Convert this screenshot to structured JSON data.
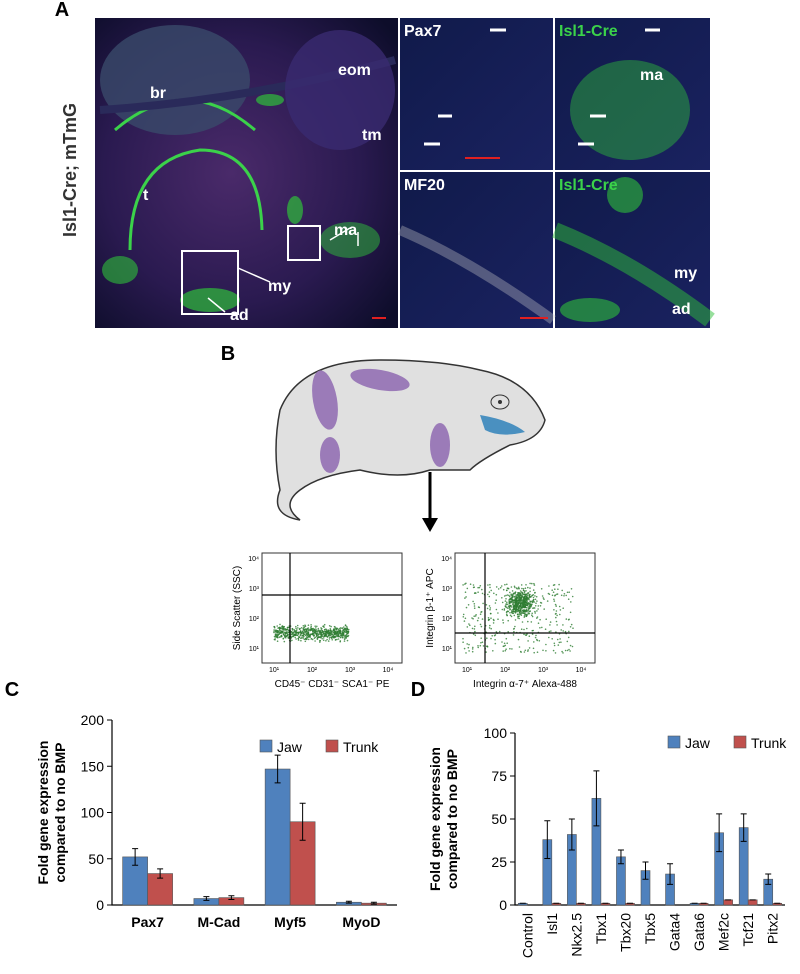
{
  "panel_labels": [
    "A",
    "B",
    "C",
    "D"
  ],
  "panel_a": {
    "side_label": "Isl1-Cre; mTmG",
    "main_labels": [
      "br",
      "eom",
      "tm",
      "t",
      "ma",
      "my",
      "ad"
    ],
    "insets": [
      {
        "label": "Pax7"
      },
      {
        "label": "Isl1-Cre",
        "labels": [
          "ma"
        ]
      },
      {
        "label": "MF20"
      },
      {
        "label": "Isl1-Cre",
        "labels": [
          "my",
          "ad"
        ]
      }
    ]
  },
  "panel_b": {
    "flow_plots": [
      {
        "ylabel": "Side Scatter (SSC)",
        "xlabel": "CD45⁻ CD31⁻ SCA1⁻ PE",
        "xticks": [
          "10¹",
          "10²",
          "10³",
          "10⁴"
        ],
        "yticks": [
          "10¹",
          "10²",
          "10³",
          "10⁴"
        ]
      },
      {
        "ylabel": "Integrin β-1⁺ APC",
        "xlabel": "Integrin α-7⁺ Alexa-488",
        "xticks": [
          "10¹",
          "10²",
          "10³",
          "10⁴"
        ],
        "yticks": [
          "10¹",
          "10²",
          "10³",
          "10⁴"
        ]
      }
    ]
  },
  "chart_data": [
    {
      "type": "bar",
      "ylabel": [
        "Fold gene expression",
        "compared to no BMP"
      ],
      "categories": [
        "Pax7",
        "M-Cad",
        "Myf5",
        "MyoD"
      ],
      "series": [
        {
          "name": "Jaw",
          "color": "#4f81bd",
          "values": [
            52,
            7,
            147,
            3
          ],
          "errors": [
            9,
            2,
            15,
            1
          ]
        },
        {
          "name": "Trunk",
          "color": "#c0504d",
          "values": [
            34,
            8,
            90,
            2
          ],
          "errors": [
            5,
            2,
            20,
            1
          ]
        }
      ],
      "ylim": [
        0,
        200
      ],
      "yticks": [
        0,
        50,
        100,
        150,
        200
      ],
      "legend": "top-right"
    },
    {
      "type": "bar",
      "ylabel": [
        "Fold gene expression",
        "compared to no BMP"
      ],
      "categories": [
        "Control",
        "Isl1",
        "Nkx2.5",
        "Tbx1",
        "Tbx20",
        "Tbx5",
        "Gata4",
        "Gata6",
        "Mef2c",
        "Tcf21",
        "Pitx2"
      ],
      "series": [
        {
          "name": "Jaw",
          "color": "#4f81bd",
          "values": [
            1,
            38,
            41,
            62,
            28,
            20,
            18,
            1,
            42,
            45,
            15
          ],
          "errors": [
            0,
            11,
            9,
            16,
            4,
            5,
            6,
            0,
            11,
            8,
            3
          ]
        },
        {
          "name": "Trunk",
          "color": "#c0504d",
          "values": [
            0,
            1,
            1,
            1,
            1,
            0,
            0,
            1,
            3,
            3,
            1
          ],
          "errors": [
            0,
            0,
            0,
            0,
            0,
            0,
            0,
            0,
            0,
            0,
            0
          ]
        }
      ],
      "ylim": [
        0,
        100
      ],
      "yticks": [
        0,
        25,
        50,
        75,
        100
      ],
      "legend": "top-right"
    }
  ]
}
